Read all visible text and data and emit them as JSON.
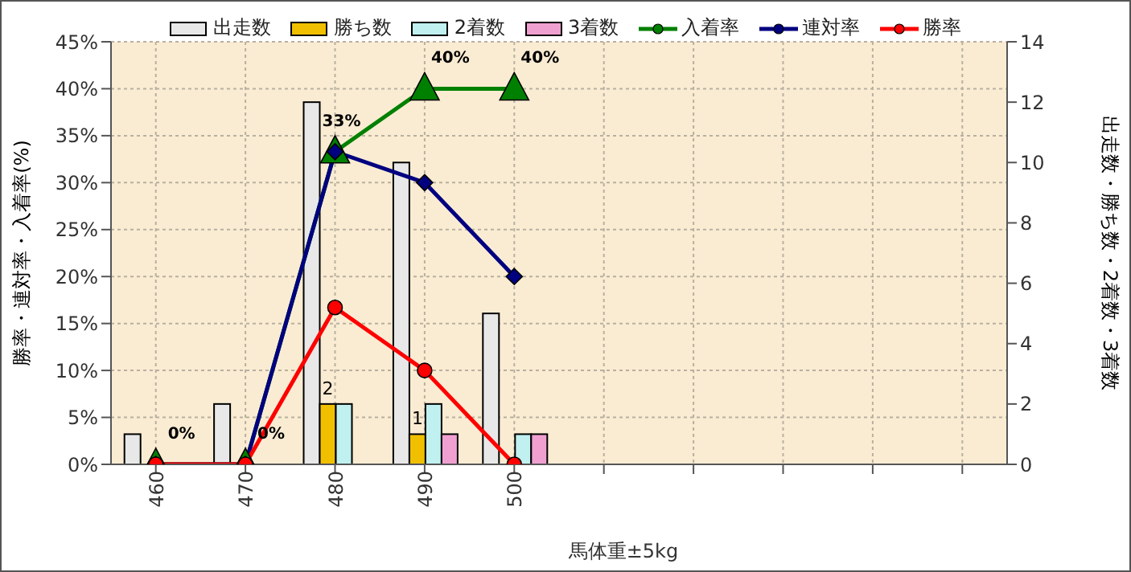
{
  "chart_data": {
    "type": "bar",
    "xlabel": "馬体重±5kg",
    "ylabel": "勝率・連対率・入着率(%)",
    "y2label": "出走数・勝ち数・2着数・3着数",
    "categories": [
      "460",
      "470",
      "480",
      "490",
      "500",
      null,
      null,
      null,
      null,
      null
    ],
    "series": [
      {
        "name": "出走数",
        "axis": "y2",
        "color": "#e8e8e8",
        "values": [
          1,
          2,
          12,
          10,
          5,
          null,
          null,
          null,
          null,
          null
        ]
      },
      {
        "name": "勝ち数",
        "axis": "y2",
        "color": "#f0c000",
        "values": [
          0,
          0,
          2,
          1,
          0,
          null,
          null,
          null,
          null,
          null
        ],
        "value_labels": [
          null,
          null,
          "2",
          "1",
          null,
          null,
          null,
          null,
          null,
          null
        ]
      },
      {
        "name": "2着数",
        "axis": "y2",
        "color": "#c0f0f0",
        "values": [
          0,
          0,
          2,
          2,
          1,
          null,
          null,
          null,
          null,
          null
        ]
      },
      {
        "name": "3着数",
        "axis": "y2",
        "color": "#f0a0d0",
        "values": [
          0,
          0,
          0,
          1,
          1,
          null,
          null,
          null,
          null,
          null
        ]
      },
      {
        "name": "入着率",
        "type": "line",
        "color": "#008000",
        "marker": "triangle",
        "values": [
          0,
          0,
          33.3,
          40,
          40,
          null,
          null,
          null,
          null,
          null
        ],
        "value_labels": [
          "0%",
          "0%",
          "33%",
          "40%",
          "40%",
          null,
          null,
          null,
          null,
          null
        ]
      },
      {
        "name": "連対率",
        "type": "line",
        "color": "#000080",
        "marker": "diamond",
        "values": [
          0,
          0,
          33.3,
          30,
          20,
          null,
          null,
          null,
          null,
          null
        ]
      },
      {
        "name": "勝率",
        "type": "line",
        "color": "#ff0000",
        "marker": "circle",
        "values": [
          0,
          0,
          16.7,
          10,
          0,
          null,
          null,
          null,
          null,
          null
        ]
      }
    ],
    "ylim": [
      0,
      45
    ],
    "yticks": [
      {
        "value": 0,
        "label": "0%"
      },
      {
        "value": 5,
        "label": "5%"
      },
      {
        "value": 10,
        "label": "10%"
      },
      {
        "value": 15,
        "label": "15%"
      },
      {
        "value": 20,
        "label": "20%"
      },
      {
        "value": 25,
        "label": "25%"
      },
      {
        "value": 30,
        "label": "30%"
      },
      {
        "value": 35,
        "label": "35%"
      },
      {
        "value": 40,
        "label": "40%"
      },
      {
        "value": 45,
        "label": "45%"
      }
    ],
    "y2lim": [
      0,
      14
    ],
    "y2ticks": [
      0,
      2,
      4,
      6,
      8,
      10,
      12,
      14
    ],
    "grid": true,
    "legend": "top"
  }
}
